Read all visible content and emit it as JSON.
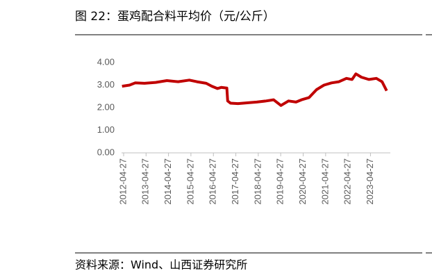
{
  "chart_data": {
    "type": "line",
    "title": "图 22：蛋鸡配合料平均价（元/公斤）",
    "source": "资料来源：Wind、山西证券研究所",
    "x": [
      "2012-04-01",
      "2012-08-01",
      "2012-11-01",
      "2013-04-01",
      "2013-10-01",
      "2014-04-01",
      "2014-10-01",
      "2015-04-01",
      "2015-08-01",
      "2016-01-01",
      "2016-04-01",
      "2016-07-01",
      "2016-09-01",
      "2016-12-01",
      "2016-12-15",
      "2017-02-01",
      "2017-06-01",
      "2017-12-01",
      "2018-04-01",
      "2018-09-01",
      "2019-01-01",
      "2019-05-01",
      "2019-09-01",
      "2020-01-01",
      "2020-04-01",
      "2020-08-01",
      "2020-12-01",
      "2021-04-01",
      "2021-08-01",
      "2021-12-01",
      "2022-04-01",
      "2022-07-01",
      "2022-09-01",
      "2022-12-01",
      "2023-04-01",
      "2023-08-01",
      "2023-11-01",
      "2024-01-15"
    ],
    "values": [
      2.95,
      3.0,
      3.1,
      3.08,
      3.12,
      3.2,
      3.15,
      3.22,
      3.15,
      3.08,
      2.95,
      2.85,
      2.9,
      2.87,
      2.3,
      2.2,
      2.18,
      2.22,
      2.25,
      2.3,
      2.35,
      2.1,
      2.3,
      2.25,
      2.35,
      2.45,
      2.8,
      3.0,
      3.1,
      3.15,
      3.3,
      3.25,
      3.5,
      3.35,
      3.25,
      3.3,
      3.15,
      2.75
    ],
    "color": "#c00000",
    "xlim": [
      "2012-03-24",
      "2024-03-15"
    ],
    "xticks": [
      "2012-04-27",
      "2013-04-27",
      "2014-04-27",
      "2015-04-27",
      "2016-04-27",
      "2017-04-27",
      "2018-04-27",
      "2019-04-27",
      "2020-04-27",
      "2021-04-27",
      "2022-04-27",
      "2023-04-27"
    ],
    "ylim": [
      0,
      4
    ],
    "yticks": [
      {
        "value": 0,
        "label": "0.00"
      },
      {
        "value": 1,
        "label": "1.00"
      },
      {
        "value": 2,
        "label": "2.00"
      },
      {
        "value": 3,
        "label": "3.00"
      },
      {
        "value": 4,
        "label": "4.00"
      }
    ]
  }
}
